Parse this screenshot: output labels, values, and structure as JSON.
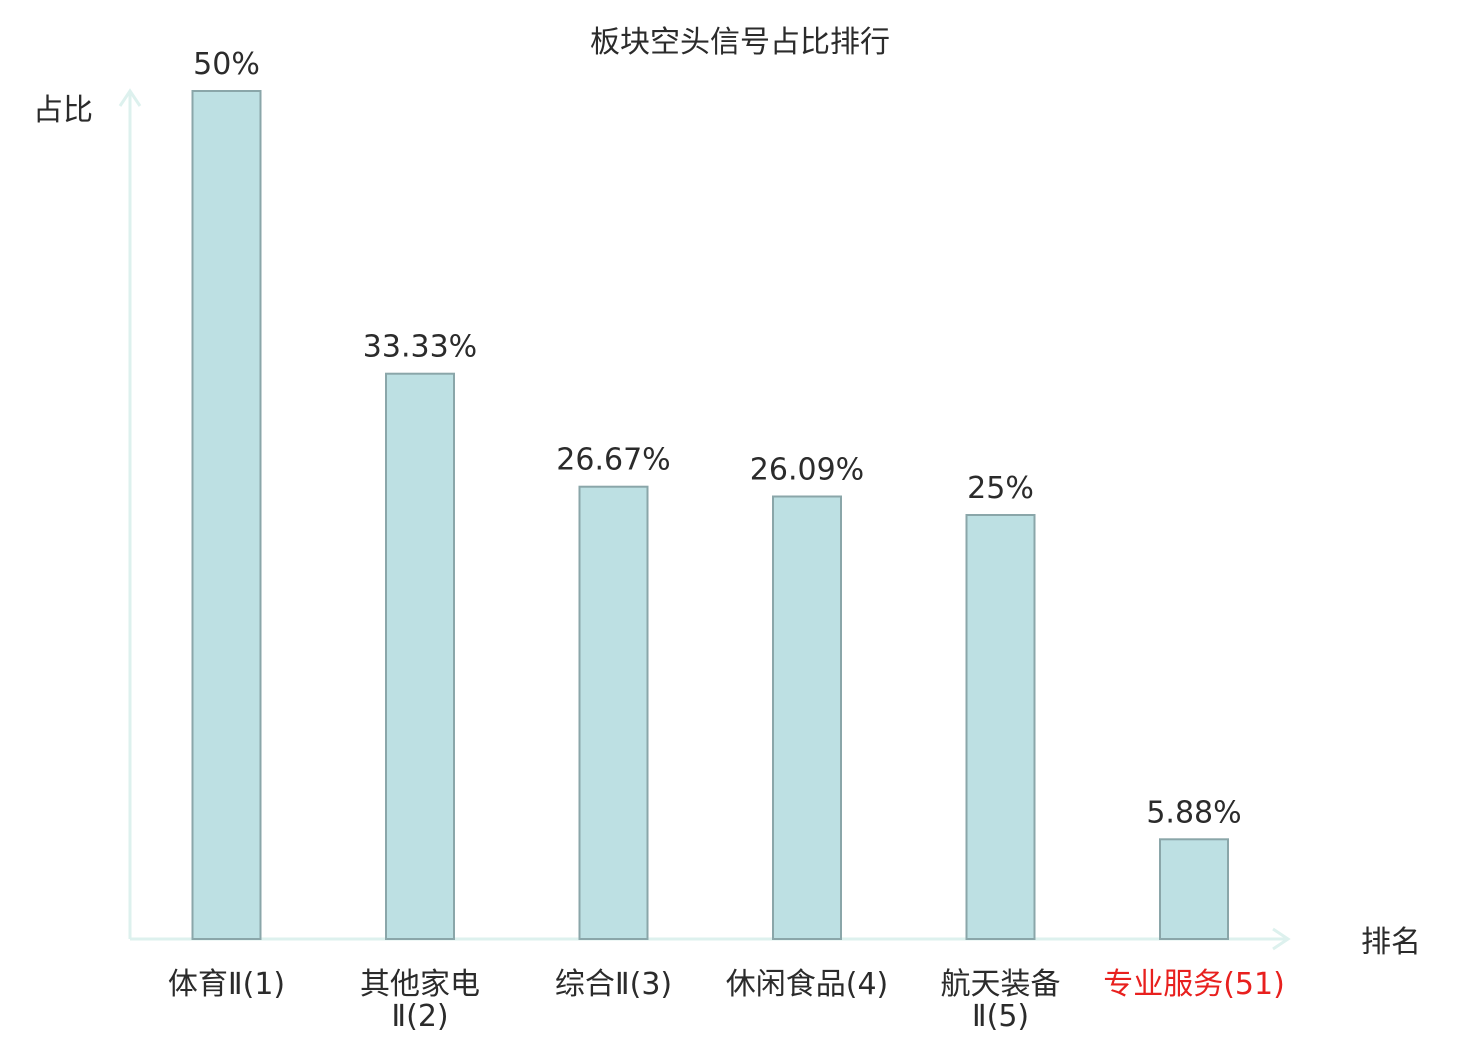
{
  "chart_data": {
    "type": "bar",
    "title": "板块空头信号占比排行",
    "ylabel": "占比",
    "xlabel": "排名",
    "ylim": [
      0,
      50
    ],
    "grid": false,
    "categories": [
      [
        "体育Ⅱ(1)"
      ],
      [
        "其他家电",
        "Ⅱ(2)"
      ],
      [
        "综合Ⅱ(3)"
      ],
      [
        "休闲食品(4)"
      ],
      [
        "航天装备",
        "Ⅱ(5)"
      ],
      [
        "专业服务(51)"
      ]
    ],
    "values": [
      50,
      33.33,
      26.67,
      26.09,
      25,
      5.88
    ],
    "value_labels": [
      "50%",
      "33.33%",
      "26.67%",
      "26.09%",
      "25%",
      "5.88%"
    ],
    "highlight_index": 5,
    "colors": {
      "bar_fill": "#bde0e3",
      "bar_stroke": "#8aa6a9",
      "axis": "#ddf1ee",
      "text": "#2b2b2b",
      "highlight_text": "#e8201e"
    }
  }
}
